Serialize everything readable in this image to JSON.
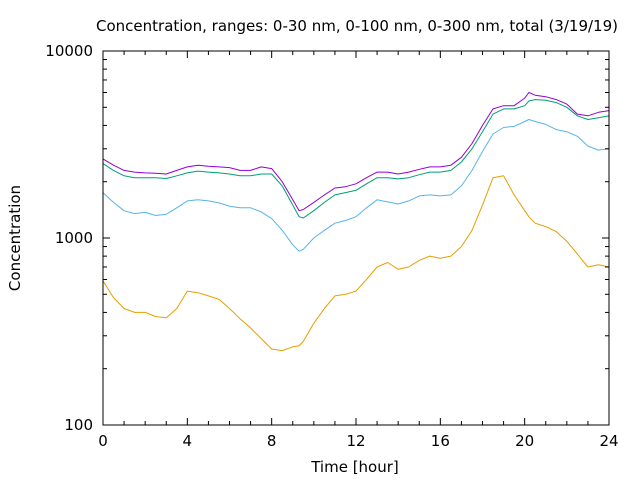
{
  "chart_data": {
    "type": "line",
    "title": "Concentration, ranges: 0-30 nm, 0-100 nm, 0-300 nm, total (3/19/19)",
    "xlabel": "Time [hour]",
    "ylabel": "Concentration",
    "y_scale": "log",
    "xlim": [
      0,
      24
    ],
    "ylim": [
      100,
      10000
    ],
    "grid": false,
    "legend": "none",
    "x_ticks": [
      0,
      4,
      8,
      12,
      16,
      20,
      24
    ],
    "x_tick_labels": [
      "0",
      "4",
      "8",
      "12",
      "16",
      "20",
      "24"
    ],
    "y_ticks": [
      100,
      1000,
      10000
    ],
    "y_tick_labels": [
      "100",
      "1000",
      "10000"
    ],
    "x": [
      0,
      0.5,
      1,
      1.5,
      2,
      2.5,
      3,
      3.5,
      4,
      4.5,
      5,
      5.5,
      6,
      6.5,
      7,
      7.5,
      8,
      8.5,
      9,
      9.3,
      9.5,
      10,
      10.5,
      11,
      11.5,
      12,
      12.5,
      13,
      13.5,
      14,
      14.5,
      15,
      15.5,
      16,
      16.5,
      17,
      17.5,
      18,
      18.5,
      19,
      19.5,
      20,
      20.2,
      20.5,
      21,
      21.5,
      22,
      22.5,
      23,
      23.5,
      24
    ],
    "series": [
      {
        "color": "#e69f00",
        "values": [
          590,
          480,
          420,
          400,
          400,
          380,
          375,
          420,
          520,
          510,
          490,
          470,
          420,
          370,
          330,
          290,
          255,
          250,
          262,
          265,
          280,
          350,
          420,
          490,
          500,
          520,
          600,
          700,
          740,
          680,
          700,
          760,
          800,
          780,
          800,
          900,
          1100,
          1500,
          2100,
          2150,
          1700,
          1400,
          1300,
          1200,
          1150,
          1080,
          960,
          820,
          700,
          720,
          700
        ]
      },
      {
        "color": "#56b4e9",
        "values": [
          1750,
          1550,
          1400,
          1350,
          1370,
          1320,
          1340,
          1450,
          1580,
          1600,
          1580,
          1540,
          1480,
          1450,
          1450,
          1380,
          1270,
          1100,
          920,
          850,
          870,
          1000,
          1100,
          1200,
          1240,
          1300,
          1450,
          1600,
          1560,
          1520,
          1580,
          1680,
          1700,
          1680,
          1700,
          1900,
          2300,
          2900,
          3600,
          3900,
          3950,
          4200,
          4300,
          4200,
          4050,
          3800,
          3700,
          3500,
          3100,
          2950,
          3000
        ]
      },
      {
        "color": "#009e73",
        "values": [
          2500,
          2300,
          2150,
          2100,
          2100,
          2100,
          2080,
          2150,
          2230,
          2280,
          2250,
          2230,
          2200,
          2150,
          2150,
          2200,
          2200,
          1900,
          1500,
          1300,
          1280,
          1400,
          1550,
          1700,
          1750,
          1800,
          1950,
          2100,
          2100,
          2070,
          2100,
          2180,
          2250,
          2250,
          2300,
          2550,
          3000,
          3700,
          4600,
          4900,
          4900,
          5100,
          5400,
          5500,
          5450,
          5300,
          5000,
          4500,
          4300,
          4400,
          4500
        ]
      },
      {
        "color": "#9400d3",
        "values": [
          2650,
          2450,
          2300,
          2250,
          2230,
          2220,
          2200,
          2300,
          2400,
          2450,
          2420,
          2400,
          2380,
          2300,
          2300,
          2400,
          2350,
          2000,
          1600,
          1400,
          1420,
          1550,
          1700,
          1850,
          1880,
          1950,
          2100,
          2250,
          2250,
          2200,
          2250,
          2330,
          2400,
          2400,
          2450,
          2700,
          3200,
          4000,
          4900,
          5100,
          5100,
          5600,
          6000,
          5800,
          5700,
          5500,
          5200,
          4600,
          4500,
          4700,
          4800
        ]
      }
    ]
  }
}
